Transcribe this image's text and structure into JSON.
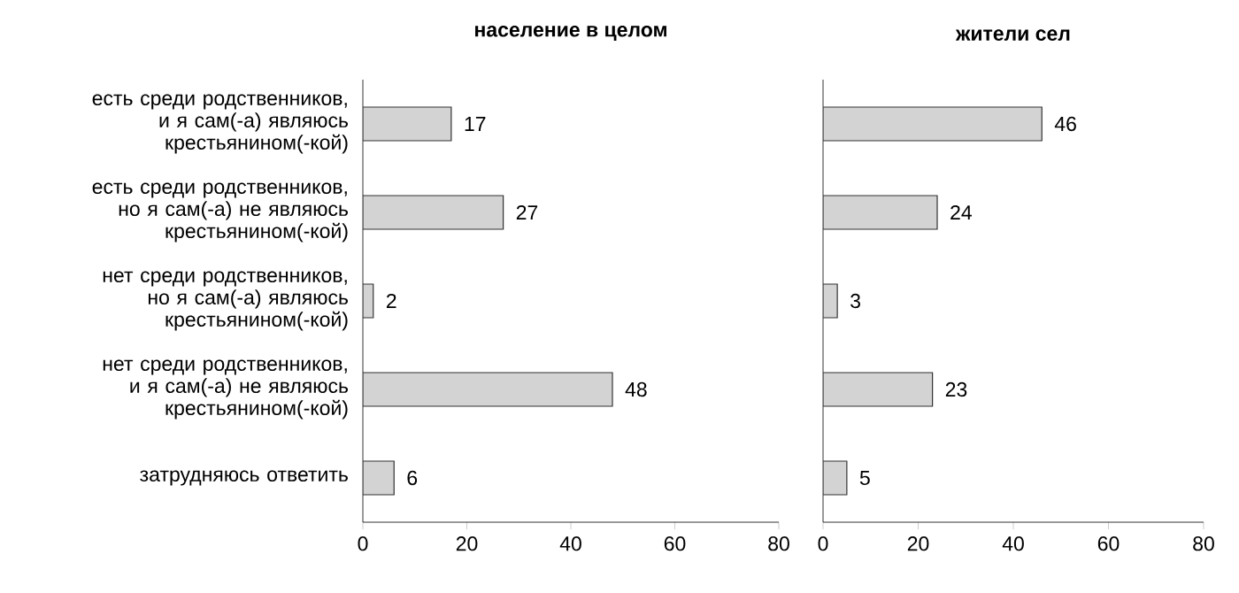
{
  "chart_data": [
    {
      "type": "bar",
      "orientation": "horizontal",
      "title": "население в целом",
      "categories": [
        "есть среди родственников, и я сам(-а) являюсь крестьянином(-кой)",
        "есть среди родственников, но я сам(-а) не являюсь крестьянином(-кой)",
        "нет среди родственников, но я сам(-а) являюсь крестьянином(-кой)",
        "нет среди родственников, и я сам(-а) не являюсь крестьянином(-кой)",
        "затрудняюсь ответить"
      ],
      "values": [
        17,
        27,
        2,
        48,
        6
      ],
      "color": "#d3d3d3",
      "xlim": [
        0,
        80
      ],
      "xticks": [
        0,
        20,
        40,
        60,
        80
      ],
      "data_labels": true
    },
    {
      "type": "bar",
      "orientation": "horizontal",
      "title": "жители сел",
      "categories": [
        null,
        null,
        null,
        null,
        null
      ],
      "values": [
        46,
        24,
        3,
        23,
        5
      ],
      "color": "#d3d3d3",
      "xlim": [
        0,
        80
      ],
      "xticks": [
        0,
        20,
        40,
        60,
        80
      ],
      "data_labels": true
    }
  ]
}
